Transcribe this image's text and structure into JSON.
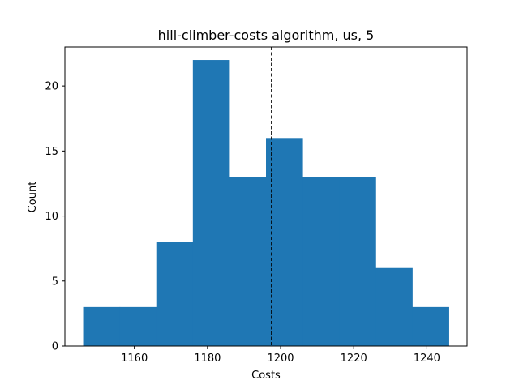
{
  "chart_data": {
    "type": "bar",
    "subtype": "histogram",
    "title": "hill-climber-costs algorithm, us, 5",
    "xlabel": "Costs",
    "ylabel": "Count",
    "bins": [
      {
        "x0": 1146,
        "x1": 1156,
        "count": 3
      },
      {
        "x0": 1156,
        "x1": 1166,
        "count": 3
      },
      {
        "x0": 1166,
        "x1": 1176,
        "count": 8
      },
      {
        "x0": 1176,
        "x1": 1186,
        "count": 22
      },
      {
        "x0": 1186,
        "x1": 1196,
        "count": 13
      },
      {
        "x0": 1196,
        "x1": 1206,
        "count": 16
      },
      {
        "x0": 1206,
        "x1": 1216,
        "count": 13
      },
      {
        "x0": 1216,
        "x1": 1226,
        "count": 13
      },
      {
        "x0": 1226,
        "x1": 1236,
        "count": 6
      },
      {
        "x0": 1236,
        "x1": 1246,
        "count": 3
      }
    ],
    "xlim": [
      1141,
      1251
    ],
    "ylim": [
      0,
      23
    ],
    "xticks": [
      1160,
      1180,
      1200,
      1220,
      1240
    ],
    "yticks": [
      0,
      5,
      10,
      15,
      20
    ],
    "mean_line": {
      "x": 1197.5,
      "style": "dashed",
      "color": "#000000"
    },
    "bar_color": "#1f77b4",
    "grid": false,
    "legend": "none"
  }
}
